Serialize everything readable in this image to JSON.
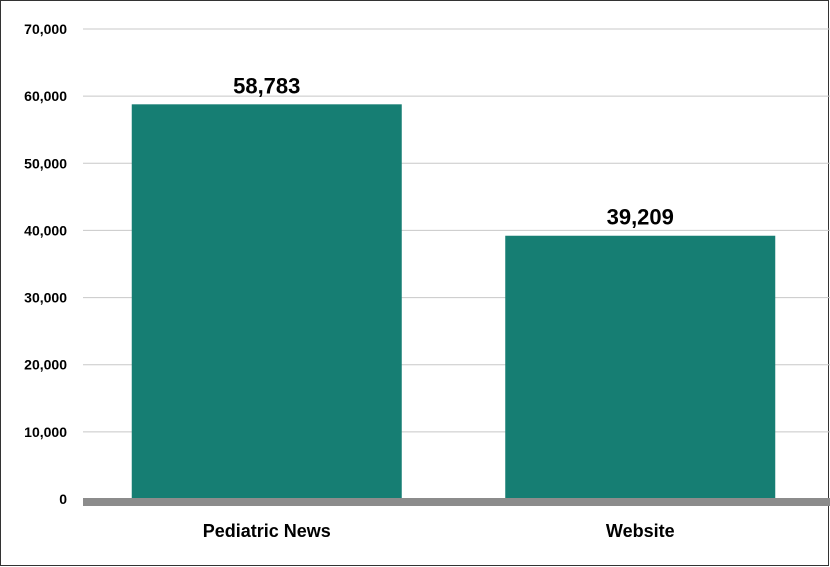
{
  "chart_data": {
    "type": "bar",
    "categories": [
      "Pediatric News",
      "Website"
    ],
    "values": [
      58783,
      39209
    ],
    "data_labels": [
      "58,783",
      "39,209"
    ],
    "ylim": [
      0,
      70000
    ],
    "yticks": [
      0,
      10000,
      20000,
      30000,
      40000,
      50000,
      60000,
      70000
    ],
    "ytick_labels": [
      "0",
      "10,000",
      "20,000",
      "30,000",
      "40,000",
      "50,000",
      "60,000",
      "70,000"
    ],
    "grid": true,
    "legend": "none",
    "colors": {
      "bar": "#167e73",
      "grid": "#c8c8c8",
      "baseline": "#8c8c8c",
      "text": "#000000"
    }
  }
}
